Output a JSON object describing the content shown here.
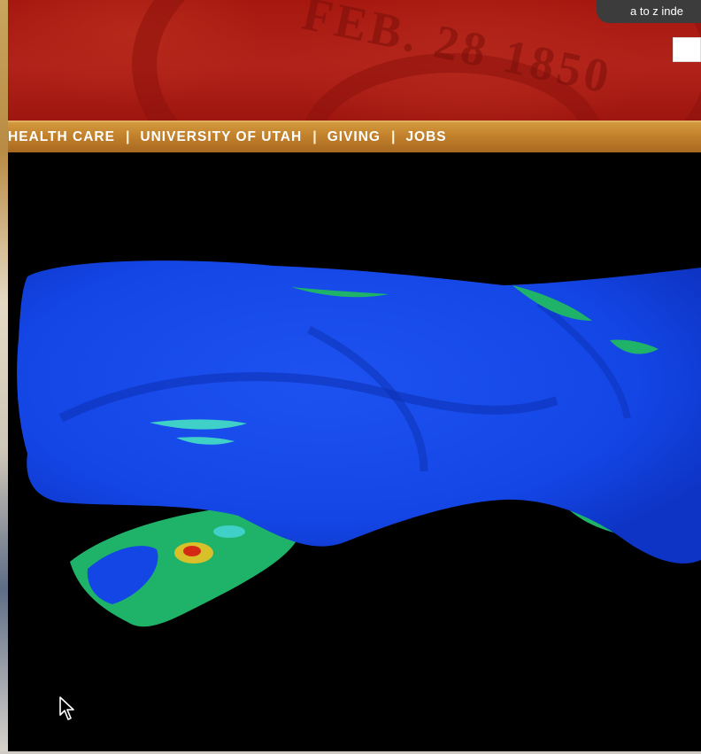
{
  "header": {
    "atoz_label": "a to z inde",
    "seal_text": "FEB. 28 1850"
  },
  "nav": {
    "items": [
      {
        "label": "HEALTH CARE"
      },
      {
        "label": "UNIVERSITY OF UTAH"
      },
      {
        "label": "GIVING"
      },
      {
        "label": "JOBS"
      }
    ],
    "separator": "|"
  },
  "viewer": {
    "icon": "mouse-pointer-icon"
  },
  "colors": {
    "header_red": "#a6180f",
    "nav_gold": "#c2812c",
    "viewer_bg": "#000000",
    "surface_blue": "#1446e6",
    "map_green": "#1fb36a",
    "map_yellow": "#d8c02a",
    "map_red": "#d42a14"
  }
}
